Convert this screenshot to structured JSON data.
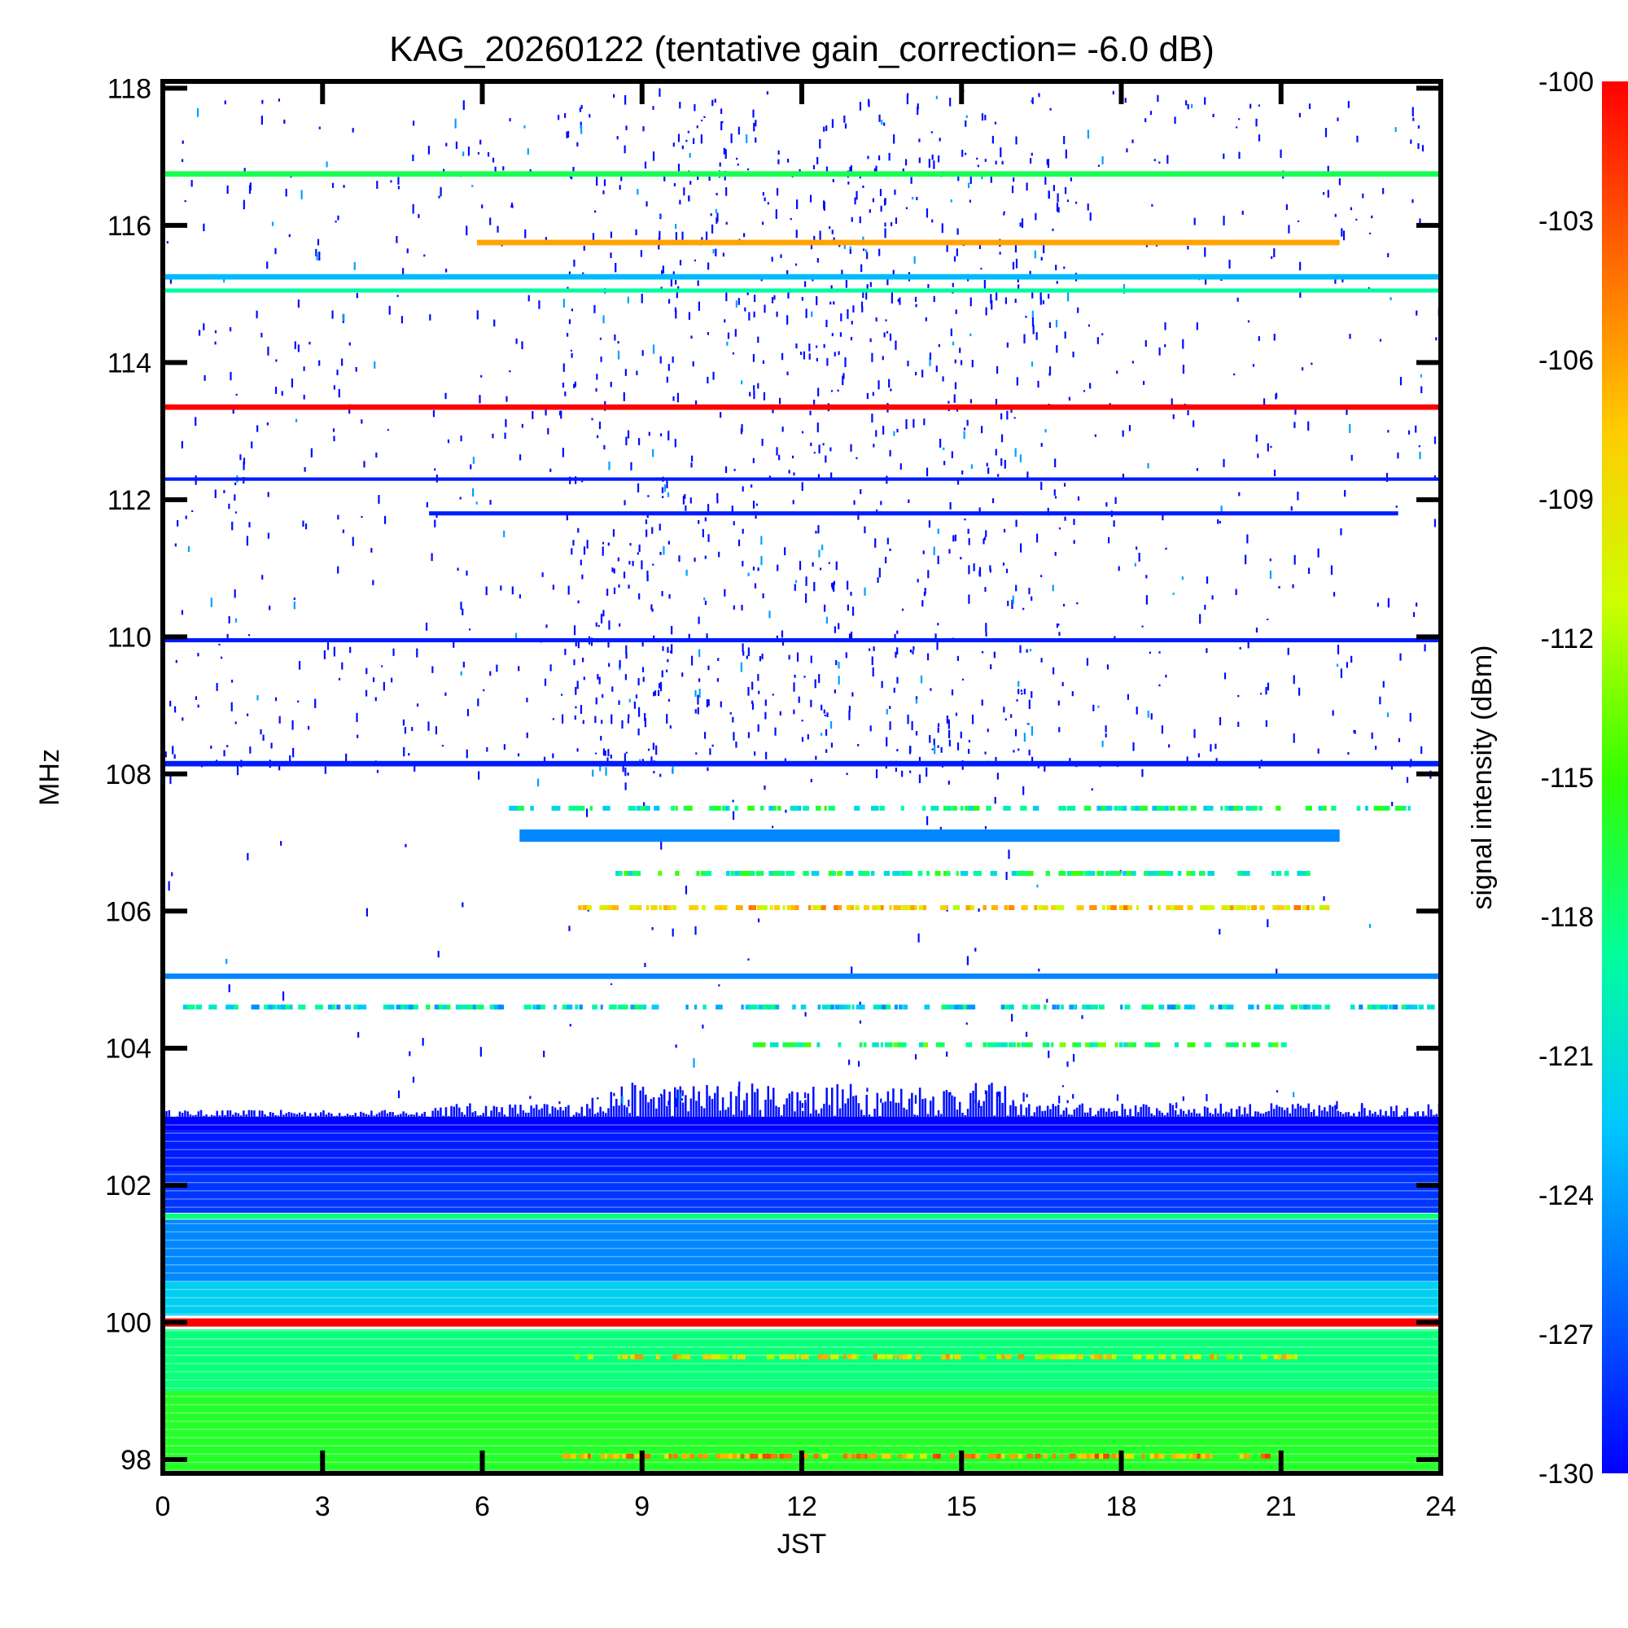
{
  "chart_data": {
    "type": "heatmap",
    "title": "KAG_20260122 (tentative gain_correction= -6.0 dB)",
    "xlabel": "JST",
    "ylabel": "MHz",
    "colorbar_label": "signal intensity (dBm)",
    "xlim": [
      0,
      24
    ],
    "ylim": [
      97.8,
      118.1
    ],
    "x_ticks": [
      0,
      3,
      6,
      9,
      12,
      15,
      18,
      21,
      24
    ],
    "y_ticks": [
      98,
      100,
      102,
      104,
      106,
      108,
      110,
      112,
      114,
      116,
      118
    ],
    "x_tick_labels": [
      "0",
      "3",
      "6",
      "9",
      "12",
      "15",
      "18",
      "21",
      "24"
    ],
    "y_tick_labels": [
      "98",
      "100",
      "102",
      "104",
      "106",
      "108",
      "110",
      "112",
      "114",
      "116",
      "118"
    ],
    "colorbar_range": [
      -130,
      -100
    ],
    "colorbar_ticks": [
      -100,
      -103,
      -106,
      -109,
      -112,
      -115,
      -118,
      -121,
      -124,
      -127,
      -130
    ],
    "colorbar_tick_labels": [
      "-100",
      "-103",
      "-106",
      "-109",
      "-112",
      "-115",
      "-118",
      "-121",
      "-124",
      "-127",
      "-130"
    ],
    "colormap": [
      "#0000ff",
      "#0066ff",
      "#00c8ff",
      "#00ff99",
      "#33ff00",
      "#ccff00",
      "#ffcc00",
      "#ff6600",
      "#ff0000"
    ],
    "bands": [
      {
        "freq_mhz": 100.0,
        "t_start": 0,
        "t_end": 24,
        "dbm": -100,
        "thickness_mhz": 0.12
      },
      {
        "freq_mhz": 101.55,
        "t_start": 0,
        "t_end": 24,
        "dbm": -118,
        "thickness_mhz": 0.08
      },
      {
        "freq_mhz": 105.05,
        "t_start": 0,
        "t_end": 24,
        "dbm": -125,
        "thickness_mhz": 0.08
      },
      {
        "freq_mhz": 107.1,
        "t_start": 6.7,
        "t_end": 22.1,
        "dbm": -125,
        "thickness_mhz": 0.18
      },
      {
        "freq_mhz": 108.15,
        "t_start": 0,
        "t_end": 24,
        "dbm": -129,
        "thickness_mhz": 0.08
      },
      {
        "freq_mhz": 109.95,
        "t_start": 0,
        "t_end": 24,
        "dbm": -129,
        "thickness_mhz": 0.06
      },
      {
        "freq_mhz": 111.8,
        "t_start": 5,
        "t_end": 23.2,
        "dbm": -129,
        "thickness_mhz": 0.06
      },
      {
        "freq_mhz": 112.3,
        "t_start": 0,
        "t_end": 24,
        "dbm": -129,
        "thickness_mhz": 0.05
      },
      {
        "freq_mhz": 113.35,
        "t_start": 0,
        "t_end": 24,
        "dbm": -100,
        "thickness_mhz": 0.08
      },
      {
        "freq_mhz": 115.05,
        "t_start": 0,
        "t_end": 24,
        "dbm": -119,
        "thickness_mhz": 0.06
      },
      {
        "freq_mhz": 115.25,
        "t_start": 0,
        "t_end": 24,
        "dbm": -123,
        "thickness_mhz": 0.08
      },
      {
        "freq_mhz": 115.75,
        "t_start": 5.9,
        "t_end": 22.1,
        "dbm": -106,
        "thickness_mhz": 0.08
      },
      {
        "freq_mhz": 116.75,
        "t_start": 0,
        "t_end": 24,
        "dbm": -117,
        "thickness_mhz": 0.08
      }
    ],
    "background_regions": [
      {
        "f_start": 97.8,
        "f_end": 99.0,
        "dbm": -116
      },
      {
        "f_start": 99.0,
        "f_end": 99.9,
        "dbm": -118
      },
      {
        "f_start": 100.1,
        "f_end": 100.6,
        "dbm": -122
      },
      {
        "f_start": 100.6,
        "f_end": 101.5,
        "dbm": -125
      },
      {
        "f_start": 101.6,
        "f_end": 102.2,
        "dbm": -128
      },
      {
        "f_start": 102.2,
        "f_end": 102.8,
        "dbm": -129
      },
      {
        "f_start": 102.8,
        "f_end": 103.0,
        "dbm": -130
      }
    ]
  }
}
